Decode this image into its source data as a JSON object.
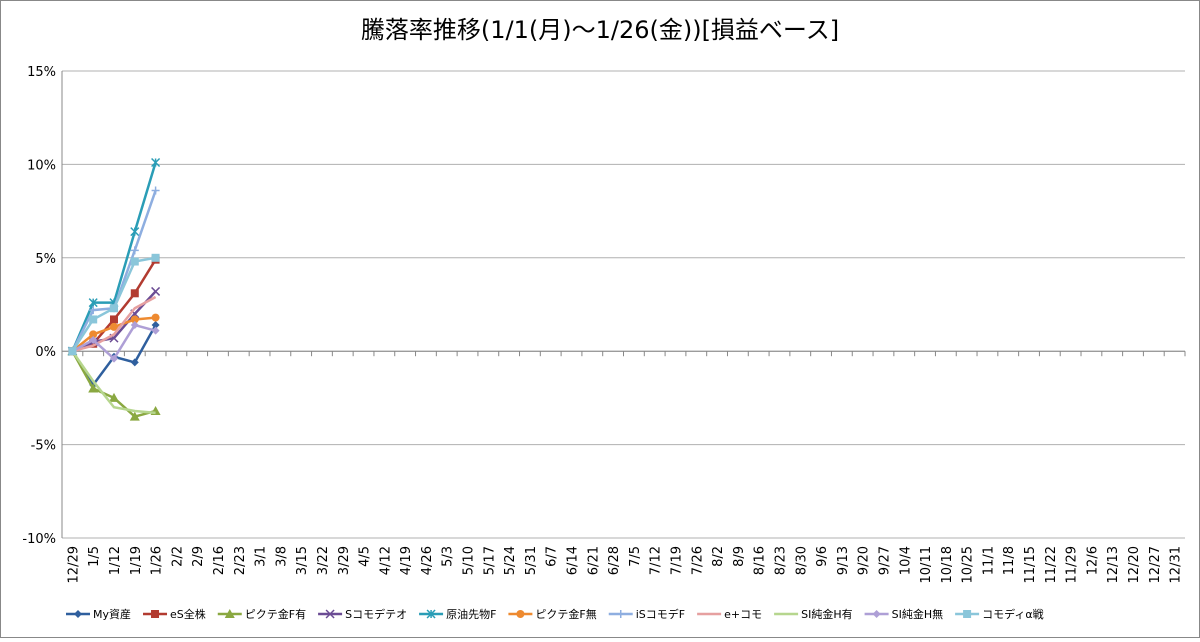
{
  "chart_data": {
    "type": "line",
    "title": "騰落率推移(1/1(月)～1/26(金))[損益ベース]",
    "categories": [
      "12/29",
      "1/5",
      "1/12",
      "1/19",
      "1/26",
      "2/2",
      "2/9",
      "2/16",
      "2/23",
      "3/1",
      "3/8",
      "3/15",
      "3/22",
      "3/29",
      "4/5",
      "4/12",
      "4/19",
      "4/26",
      "5/3",
      "5/10",
      "5/17",
      "5/24",
      "5/31",
      "6/7",
      "6/14",
      "6/21",
      "6/28",
      "7/5",
      "7/12",
      "7/19",
      "7/26",
      "8/2",
      "8/9",
      "8/16",
      "8/23",
      "8/30",
      "9/6",
      "9/13",
      "9/20",
      "9/27",
      "10/4",
      "10/11",
      "10/18",
      "10/25",
      "11/1",
      "11/8",
      "11/15",
      "11/22",
      "11/29",
      "12/6",
      "12/13",
      "12/20",
      "12/27",
      "12/31"
    ],
    "ylim": [
      -10,
      15
    ],
    "yticks": [
      {
        "value": -10,
        "label": "-10%"
      },
      {
        "value": -5,
        "label": "-5%"
      },
      {
        "value": 0,
        "label": "0%"
      },
      {
        "value": 5,
        "label": "5%"
      },
      {
        "value": 10,
        "label": "10%"
      },
      {
        "value": 15,
        "label": "15%"
      }
    ],
    "grid": true,
    "legend": "bottom",
    "series": [
      {
        "name": "My資産",
        "color": "#2f5f9e",
        "marker": "diamond",
        "values": [
          0,
          -1.8,
          -0.3,
          -0.6,
          1.4,
          null,
          null,
          null,
          null,
          null,
          null,
          null,
          null,
          null,
          null,
          null,
          null,
          null,
          null,
          null,
          null,
          null,
          null,
          null,
          null,
          null,
          null,
          null,
          null,
          null,
          null,
          null,
          null,
          null,
          null,
          null,
          null,
          null,
          null,
          null,
          null,
          null,
          null,
          null,
          null,
          null,
          null,
          null,
          null,
          null,
          null,
          null,
          null,
          null
        ]
      },
      {
        "name": "eS全株",
        "color": "#b23b30",
        "marker": "square",
        "values": [
          0,
          0.4,
          1.7,
          3.1,
          4.9,
          null,
          null,
          null,
          null,
          null,
          null,
          null,
          null,
          null,
          null,
          null,
          null,
          null,
          null,
          null,
          null,
          null,
          null,
          null,
          null,
          null,
          null,
          null,
          null,
          null,
          null,
          null,
          null,
          null,
          null,
          null,
          null,
          null,
          null,
          null,
          null,
          null,
          null,
          null,
          null,
          null,
          null,
          null,
          null,
          null,
          null,
          null,
          null,
          null
        ]
      },
      {
        "name": "ピクテ金F有",
        "color": "#8aa841",
        "marker": "triangle",
        "values": [
          0,
          -2.0,
          -2.5,
          -3.5,
          -3.2,
          null,
          null,
          null,
          null,
          null,
          null,
          null,
          null,
          null,
          null,
          null,
          null,
          null,
          null,
          null,
          null,
          null,
          null,
          null,
          null,
          null,
          null,
          null,
          null,
          null,
          null,
          null,
          null,
          null,
          null,
          null,
          null,
          null,
          null,
          null,
          null,
          null,
          null,
          null,
          null,
          null,
          null,
          null,
          null,
          null,
          null,
          null,
          null,
          null
        ]
      },
      {
        "name": "Sコモデテオ",
        "color": "#6b4c94",
        "marker": "x",
        "values": [
          0,
          0.5,
          0.7,
          2.0,
          3.2,
          null,
          null,
          null,
          null,
          null,
          null,
          null,
          null,
          null,
          null,
          null,
          null,
          null,
          null,
          null,
          null,
          null,
          null,
          null,
          null,
          null,
          null,
          null,
          null,
          null,
          null,
          null,
          null,
          null,
          null,
          null,
          null,
          null,
          null,
          null,
          null,
          null,
          null,
          null,
          null,
          null,
          null,
          null,
          null,
          null,
          null,
          null,
          null,
          null
        ]
      },
      {
        "name": "原油先物F",
        "color": "#2a9db6",
        "marker": "star",
        "values": [
          0,
          2.6,
          2.6,
          6.4,
          10.1,
          null,
          null,
          null,
          null,
          null,
          null,
          null,
          null,
          null,
          null,
          null,
          null,
          null,
          null,
          null,
          null,
          null,
          null,
          null,
          null,
          null,
          null,
          null,
          null,
          null,
          null,
          null,
          null,
          null,
          null,
          null,
          null,
          null,
          null,
          null,
          null,
          null,
          null,
          null,
          null,
          null,
          null,
          null,
          null,
          null,
          null,
          null,
          null,
          null
        ]
      },
      {
        "name": "ピクテ金F無",
        "color": "#ee8a30",
        "marker": "circle",
        "values": [
          0,
          0.9,
          1.3,
          1.7,
          1.8,
          null,
          null,
          null,
          null,
          null,
          null,
          null,
          null,
          null,
          null,
          null,
          null,
          null,
          null,
          null,
          null,
          null,
          null,
          null,
          null,
          null,
          null,
          null,
          null,
          null,
          null,
          null,
          null,
          null,
          null,
          null,
          null,
          null,
          null,
          null,
          null,
          null,
          null,
          null,
          null,
          null,
          null,
          null,
          null,
          null,
          null,
          null,
          null,
          null
        ]
      },
      {
        "name": "iSコモデF",
        "color": "#8eaee0",
        "marker": "plus",
        "values": [
          0,
          2.2,
          2.3,
          5.4,
          8.6,
          null,
          null,
          null,
          null,
          null,
          null,
          null,
          null,
          null,
          null,
          null,
          null,
          null,
          null,
          null,
          null,
          null,
          null,
          null,
          null,
          null,
          null,
          null,
          null,
          null,
          null,
          null,
          null,
          null,
          null,
          null,
          null,
          null,
          null,
          null,
          null,
          null,
          null,
          null,
          null,
          null,
          null,
          null,
          null,
          null,
          null,
          null,
          null,
          null
        ]
      },
      {
        "name": "e+コモ",
        "color": "#e6a0a0",
        "marker": "none",
        "values": [
          0,
          0.3,
          0.9,
          2.3,
          2.9,
          null,
          null,
          null,
          null,
          null,
          null,
          null,
          null,
          null,
          null,
          null,
          null,
          null,
          null,
          null,
          null,
          null,
          null,
          null,
          null,
          null,
          null,
          null,
          null,
          null,
          null,
          null,
          null,
          null,
          null,
          null,
          null,
          null,
          null,
          null,
          null,
          null,
          null,
          null,
          null,
          null,
          null,
          null,
          null,
          null,
          null,
          null,
          null,
          null
        ]
      },
      {
        "name": "SI純金H有",
        "color": "#b6d68e",
        "marker": "none",
        "values": [
          0,
          -1.6,
          -3.0,
          -3.2,
          -3.3,
          null,
          null,
          null,
          null,
          null,
          null,
          null,
          null,
          null,
          null,
          null,
          null,
          null,
          null,
          null,
          null,
          null,
          null,
          null,
          null,
          null,
          null,
          null,
          null,
          null,
          null,
          null,
          null,
          null,
          null,
          null,
          null,
          null,
          null,
          null,
          null,
          null,
          null,
          null,
          null,
          null,
          null,
          null,
          null,
          null,
          null,
          null,
          null,
          null
        ]
      },
      {
        "name": "SI純金H無",
        "color": "#ae9fd6",
        "marker": "diamond",
        "values": [
          0,
          0.6,
          -0.4,
          1.4,
          1.1,
          null,
          null,
          null,
          null,
          null,
          null,
          null,
          null,
          null,
          null,
          null,
          null,
          null,
          null,
          null,
          null,
          null,
          null,
          null,
          null,
          null,
          null,
          null,
          null,
          null,
          null,
          null,
          null,
          null,
          null,
          null,
          null,
          null,
          null,
          null,
          null,
          null,
          null,
          null,
          null,
          null,
          null,
          null,
          null,
          null,
          null,
          null,
          null,
          null
        ]
      },
      {
        "name": "コモディα戦",
        "color": "#8ac6da",
        "marker": "square",
        "values": [
          0,
          1.7,
          2.3,
          4.8,
          5.0,
          null,
          null,
          null,
          null,
          null,
          null,
          null,
          null,
          null,
          null,
          null,
          null,
          null,
          null,
          null,
          null,
          null,
          null,
          null,
          null,
          null,
          null,
          null,
          null,
          null,
          null,
          null,
          null,
          null,
          null,
          null,
          null,
          null,
          null,
          null,
          null,
          null,
          null,
          null,
          null,
          null,
          null,
          null,
          null,
          null,
          null,
          null,
          null,
          null
        ]
      }
    ]
  }
}
